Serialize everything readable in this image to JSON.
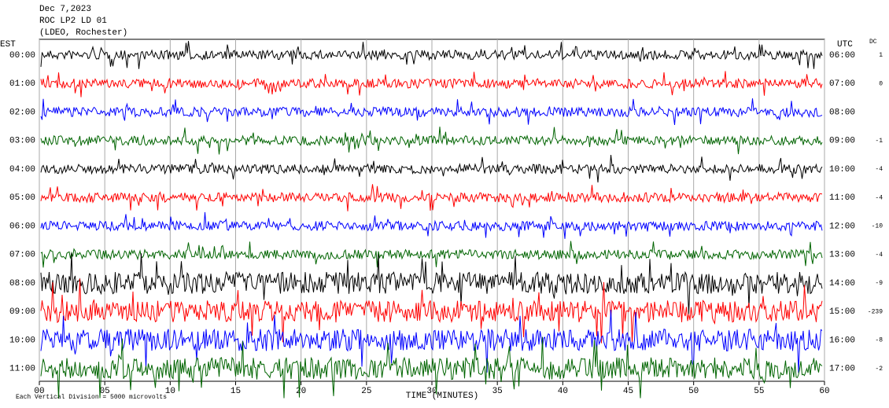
{
  "chart_data": {
    "type": "helicorder",
    "title_lines": [
      "Dec 7,2023",
      "ROC LP2 LD 01",
      "(LDEO, Rochester)"
    ],
    "left_axis_label": "EST",
    "right_axis_label": "UTC",
    "dc_label": "DC",
    "rows": [
      {
        "est": "00:00",
        "utc": "06:00",
        "dc": 1,
        "color": "#000000"
      },
      {
        "est": "01:00",
        "utc": "07:00",
        "dc": 0,
        "color": "#ff0000"
      },
      {
        "est": "02:00",
        "utc": "08:00",
        "dc": null,
        "color": "#0000ff"
      },
      {
        "est": "03:00",
        "utc": "09:00",
        "dc": -1,
        "color": "#006400"
      },
      {
        "est": "04:00",
        "utc": "10:00",
        "dc": -4,
        "color": "#000000"
      },
      {
        "est": "05:00",
        "utc": "11:00",
        "dc": -4,
        "color": "#ff0000"
      },
      {
        "est": "06:00",
        "utc": "12:00",
        "dc": -10,
        "color": "#0000ff"
      },
      {
        "est": "07:00",
        "utc": "13:00",
        "dc": -4,
        "color": "#006400"
      },
      {
        "est": "08:00",
        "utc": "14:00",
        "dc": -9,
        "color": "#000000"
      },
      {
        "est": "09:00",
        "utc": "15:00",
        "dc": -239,
        "color": "#ff0000"
      },
      {
        "est": "10:00",
        "utc": "16:00",
        "dc": -8,
        "color": "#0000ff"
      },
      {
        "est": "11:00",
        "utc": "17:00",
        "dc": -2,
        "color": "#006400"
      }
    ],
    "xlabel": "TIME (MINUTES)",
    "xlim": [
      0,
      60
    ],
    "xticks": [
      {
        "value": 0,
        "label": "00"
      },
      {
        "value": 5,
        "label": "05"
      },
      10,
      15,
      20,
      25,
      30,
      35,
      40,
      45,
      50,
      55,
      60
    ],
    "footnote": "Each Vertical Division = 5000 microvolts",
    "grid": true
  }
}
